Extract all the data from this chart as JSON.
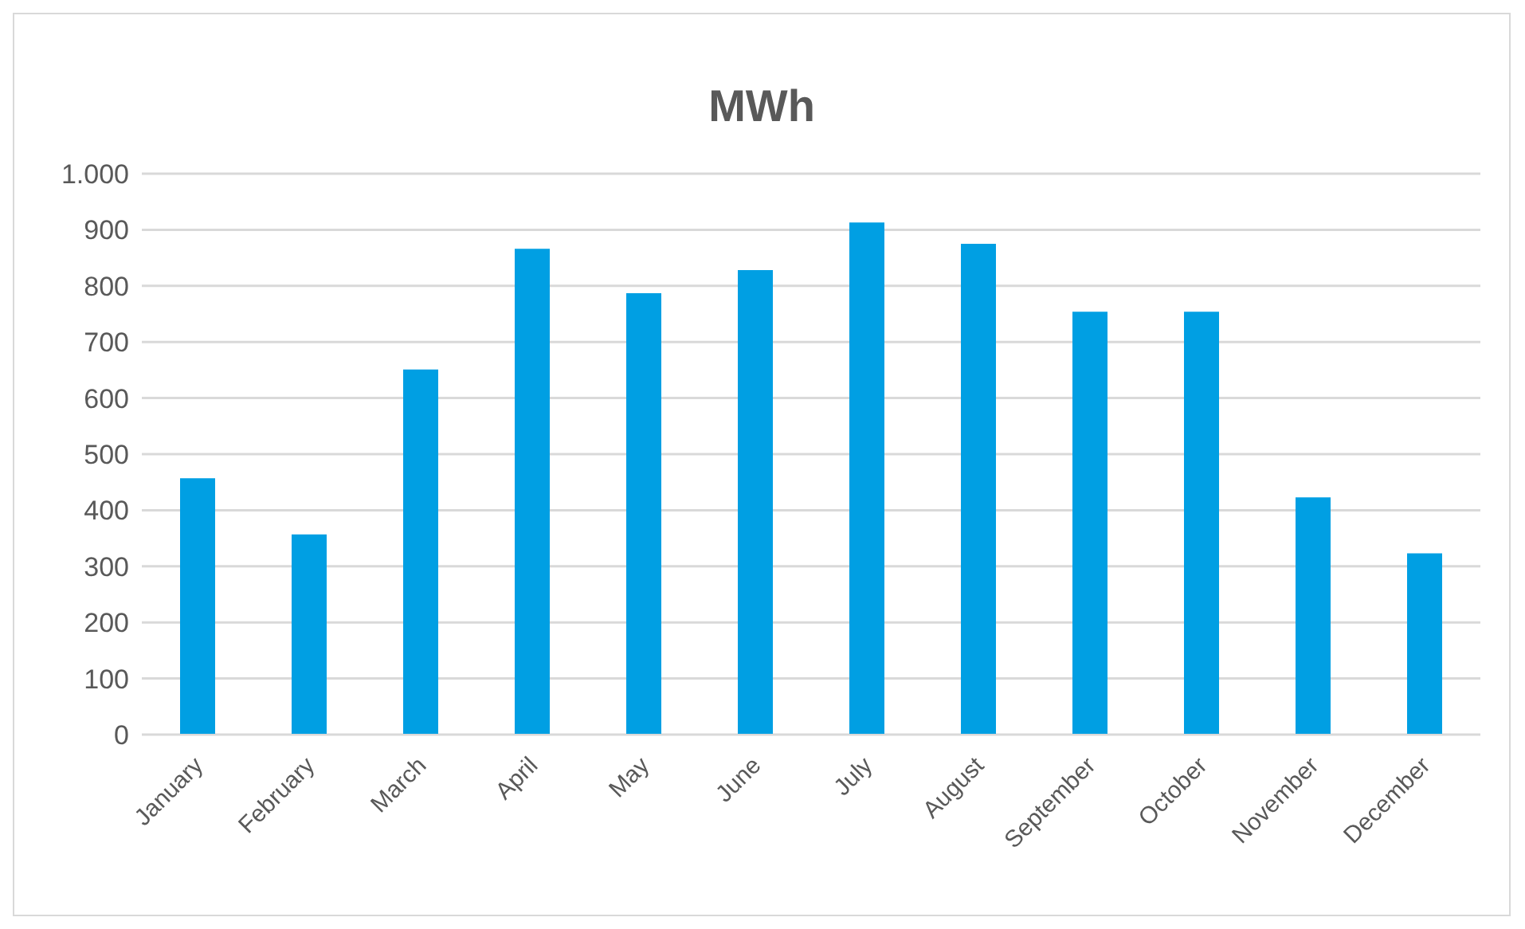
{
  "chart_data": {
    "type": "bar",
    "title": "MWh",
    "categories": [
      "January",
      "February",
      "March",
      "April",
      "May",
      "June",
      "July",
      "August",
      "September",
      "October",
      "November",
      "December"
    ],
    "values": [
      457,
      357,
      651,
      866,
      787,
      828,
      913,
      875,
      754,
      754,
      423,
      323
    ],
    "color": "#009fe3",
    "ylim": [
      0,
      1000
    ],
    "yticks": [
      0,
      100,
      200,
      300,
      400,
      500,
      600,
      700,
      800,
      900,
      {
        "value": 1000,
        "label": "1.000"
      }
    ],
    "grid": "y"
  }
}
